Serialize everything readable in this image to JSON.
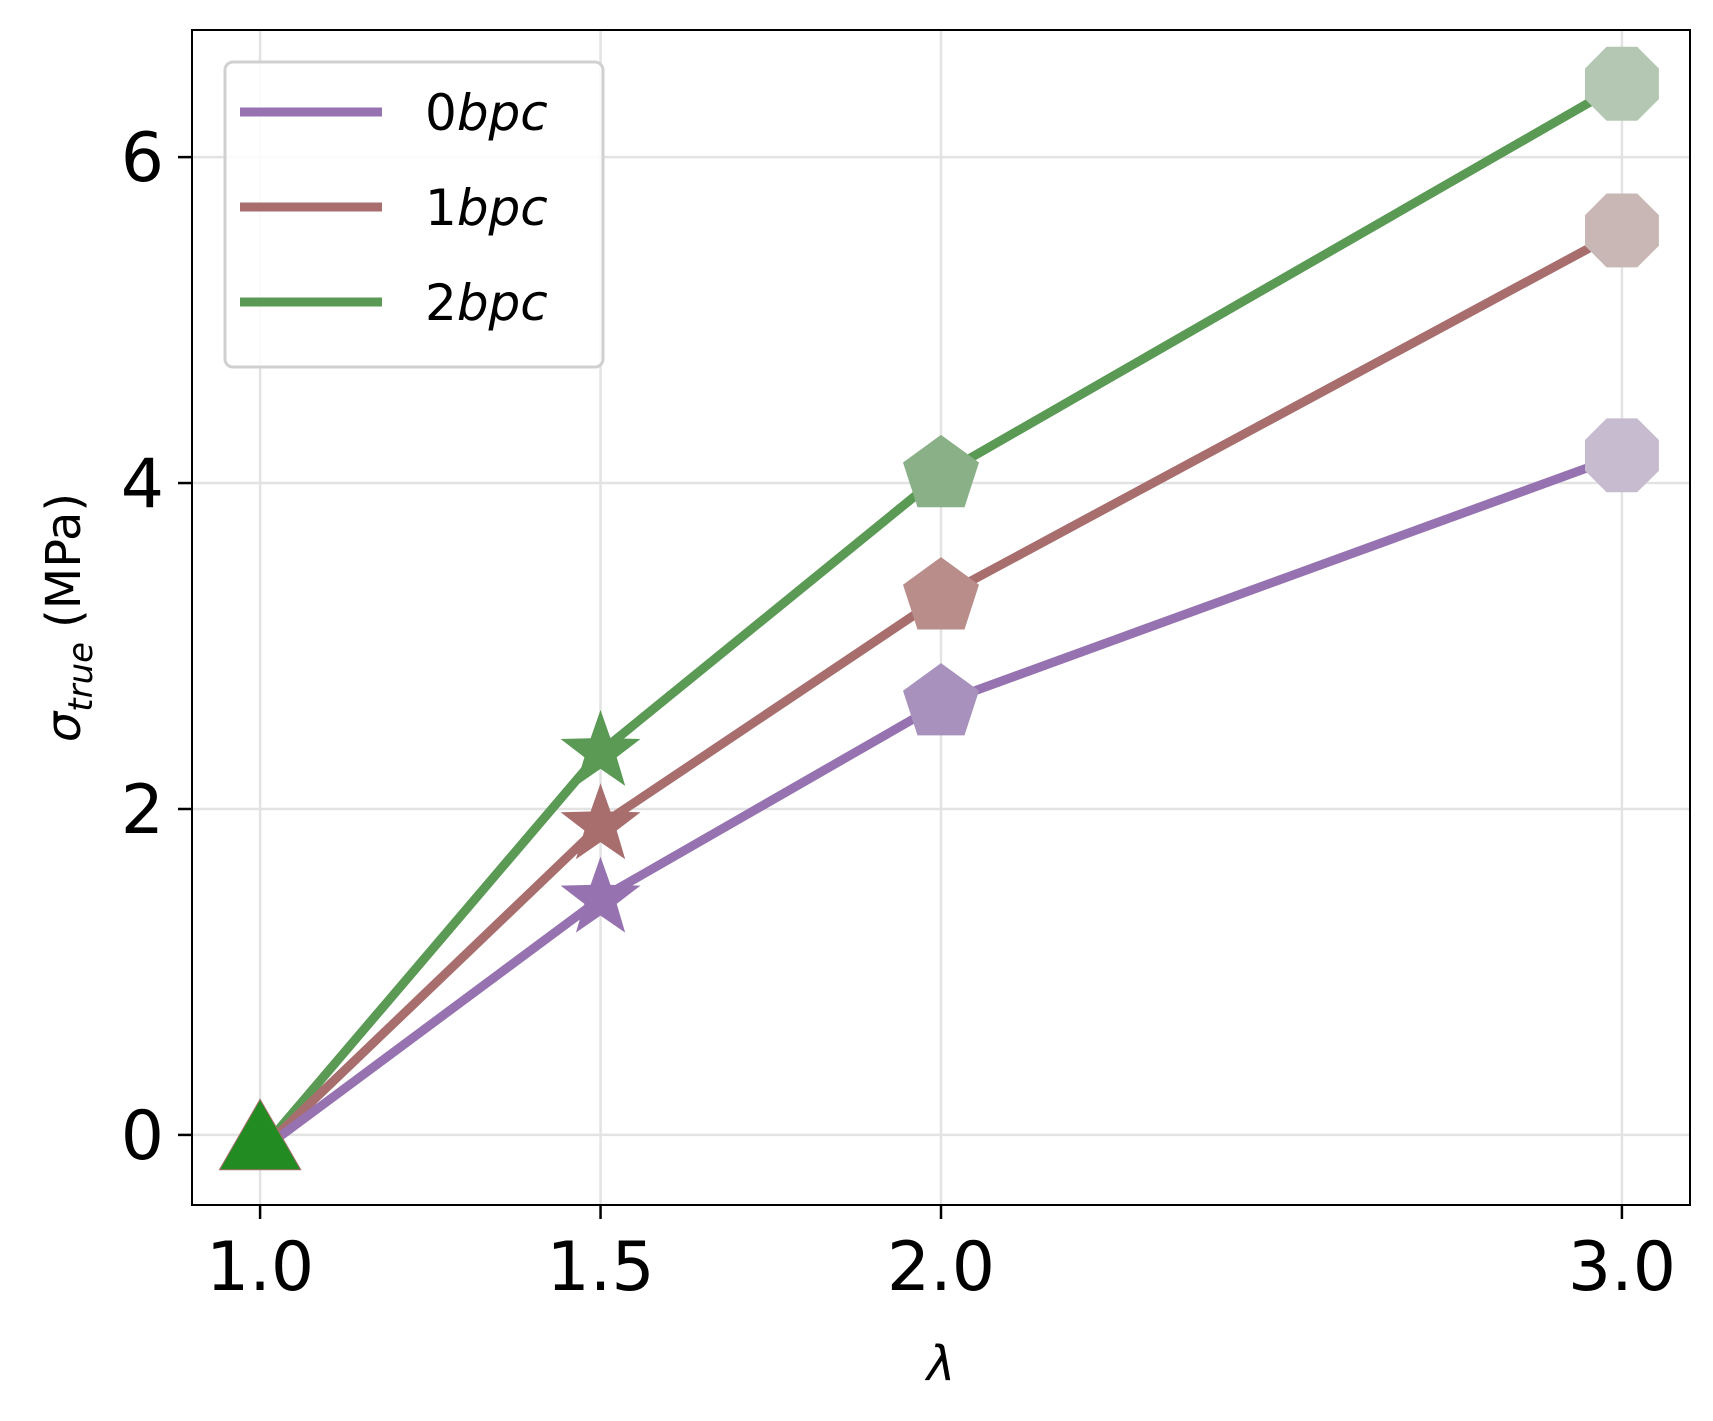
{
  "chart_data": {
    "type": "line",
    "title": "",
    "xlabel": "λ",
    "ylabel_main": "σ",
    "ylabel_sub": "true",
    "ylabel_unit": "(MPa)",
    "x": [
      1.0,
      1.5,
      2.0,
      3.0
    ],
    "x_tick_labels": [
      "1.0",
      "1.5",
      "2.0",
      "3.0"
    ],
    "y_ticks": [
      0,
      2,
      4,
      6
    ],
    "y_tick_labels": [
      "0",
      "2",
      "4",
      "6"
    ],
    "xlim": [
      0.9,
      3.1
    ],
    "ylim": [
      -0.43,
      6.78
    ],
    "grid": true,
    "legend_position": "top-left",
    "markers": [
      "triangle",
      "star",
      "pentagon",
      "octagon"
    ],
    "series": [
      {
        "name_num": "0",
        "name_unit": "bpc",
        "color": "#9673b0",
        "marker_fills": [
          "#228b22",
          "#9673b0",
          "#a892bd",
          "#c7bbd0"
        ],
        "values": [
          -0.1,
          1.45,
          2.65,
          4.17
        ]
      },
      {
        "name_num": "1",
        "name_unit": "bpc",
        "color": "#a86e6e",
        "marker_fills": [
          "#228b22",
          "#a86e6e",
          "#b88d8a",
          "#c9b7b5"
        ],
        "values": [
          -0.1,
          1.9,
          3.3,
          5.55
        ]
      },
      {
        "name_num": "2",
        "name_unit": "bpc",
        "color": "#5a9a55",
        "marker_fills": [
          "#228b22",
          "#5a9a55",
          "#8ab087",
          "#b3c7b3"
        ],
        "values": [
          -0.1,
          2.35,
          4.05,
          6.45
        ]
      }
    ]
  }
}
